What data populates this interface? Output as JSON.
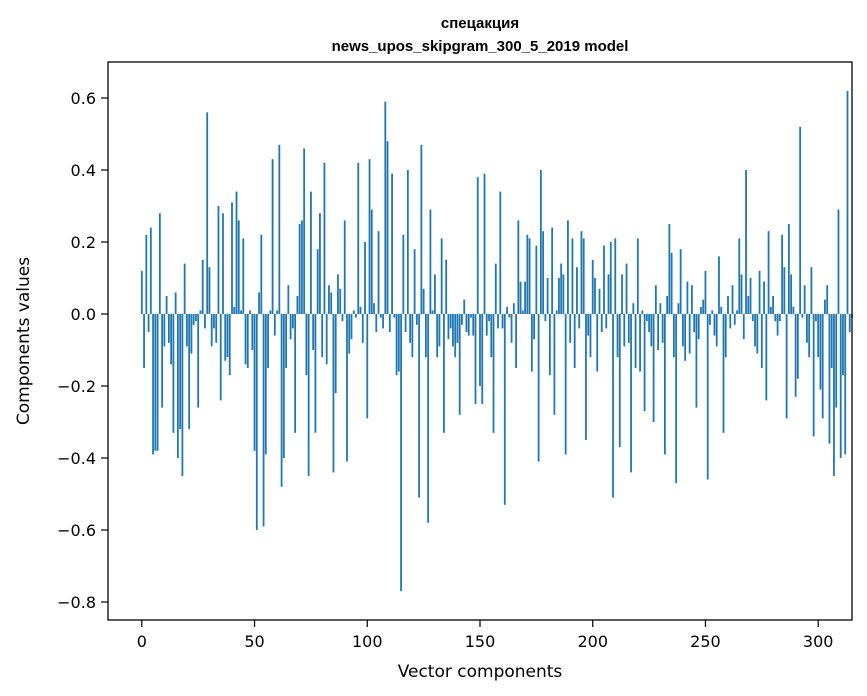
{
  "chart_data": {
    "type": "bar",
    "title": "спецакция",
    "subtitle": "news_upos_skipgram_300_5_2019 model",
    "xlabel": "Vector components",
    "ylabel": "Components values",
    "xlim": [
      -15,
      315
    ],
    "ylim": [
      -0.85,
      0.7
    ],
    "xticks": [
      0,
      50,
      100,
      150,
      200,
      250,
      300
    ],
    "xtick_labels": [
      "0",
      "50",
      "100",
      "150",
      "200",
      "250",
      "300"
    ],
    "yticks": [
      -0.8,
      -0.6,
      -0.4,
      -0.2,
      0.0,
      0.2,
      0.4,
      0.6
    ],
    "ytick_labels": [
      "−0.8",
      "−0.6",
      "−0.4",
      "−0.2",
      "0.0",
      "0.2",
      "0.4",
      "0.6"
    ],
    "bar_color": "#1f77b4",
    "grid": false,
    "values": [
      0.12,
      -0.15,
      0.22,
      -0.05,
      0.24,
      -0.39,
      -0.38,
      -0.38,
      0.28,
      -0.26,
      -0.09,
      0.05,
      -0.08,
      -0.14,
      -0.33,
      0.06,
      -0.4,
      -0.32,
      -0.45,
      0.14,
      -0.09,
      -0.32,
      -0.11,
      -0.03,
      -0.02,
      -0.26,
      0.01,
      0.15,
      -0.04,
      0.56,
      0.13,
      -0.09,
      -0.04,
      -0.08,
      0.3,
      -0.24,
      0.28,
      -0.13,
      -0.12,
      -0.17,
      0.31,
      0.02,
      0.34,
      0.26,
      0.01,
      0.21,
      -0.14,
      -0.15,
      0.01,
      -0.1,
      -0.38,
      -0.6,
      0.06,
      0.22,
      -0.59,
      -0.39,
      -0.15,
      0.01,
      0.43,
      -0.06,
      0.01,
      0.47,
      -0.48,
      -0.4,
      -0.15,
      0.08,
      -0.07,
      -0.04,
      -0.33,
      0.05,
      0.25,
      0.26,
      0.46,
      -0.17,
      -0.45,
      0.34,
      -0.1,
      -0.33,
      0.18,
      0.28,
      -0.12,
      0.42,
      -0.14,
      0.08,
      0.06,
      -0.44,
      -0.22,
      0.11,
      0.07,
      -0.02,
      0.26,
      -0.41,
      -0.11,
      -0.07,
      0.01,
      -0.01,
      0.42,
      0.02,
      -0.08,
      0.2,
      -0.29,
      0.43,
      0.29,
      0.03,
      -0.05,
      0.23,
      -0.01,
      -0.04,
      0.59,
      0.48,
      -0.05,
      0.39,
      -0.01,
      -0.17,
      -0.16,
      -0.77,
      0.22,
      -0.05,
      0.4,
      -0.08,
      -0.12,
      0.18,
      -0.03,
      -0.51,
      0.47,
      0.07,
      -0.12,
      -0.58,
      0.29,
      0.01,
      0.11,
      -0.12,
      -0.09,
      0.21,
      -0.33,
      0.15,
      -0.07,
      -0.04,
      -0.09,
      -0.12,
      -0.08,
      -0.28,
      -0.03,
      0.04,
      -0.05,
      -0.06,
      -0.01,
      -0.06,
      -0.25,
      0.38,
      -0.2,
      -0.25,
      0.39,
      -0.06,
      -0.02,
      -0.12,
      -0.33,
      0.14,
      -0.04,
      0.34,
      -0.04,
      -0.53,
      0.02,
      -0.01,
      -0.08,
      0.03,
      -0.15,
      0.26,
      0.09,
      0.01,
      0.09,
      0.22,
      0.21,
      -0.16,
      -0.07,
      0.19,
      -0.41,
      0.4,
      0.23,
      -0.02,
      0.1,
      -0.17,
      0.24,
      -0.28,
      0.01,
      0.1,
      0.14,
      0.11,
      -0.39,
      0.26,
      -0.08,
      0.21,
      -0.15,
      0.13,
      -0.04,
      0.23,
      0.21,
      -0.35,
      -0.06,
      -0.12,
      0.15,
      0.1,
      -0.16,
      0.07,
      -0.05,
      0.19,
      -0.04,
      0.11,
      0.2,
      -0.51,
      0.21,
      -0.12,
      -0.37,
      0.11,
      -0.09,
      0.14,
      -0.08,
      -0.44,
      0.03,
      -0.15,
      0.21,
      -0.16,
      0.01,
      -0.27,
      -0.02,
      -0.05,
      -0.09,
      -0.3,
      0.08,
      -0.1,
      0.03,
      -0.08,
      -0.39,
      0.05,
      0.25,
      0.17,
      -0.12,
      -0.47,
      0.03,
      0.18,
      -0.09,
      -0.13,
      0.09,
      -0.11,
      0.08,
      -0.05,
      -0.26,
      -0.07,
      0.02,
      0.04,
      0.12,
      -0.46,
      -0.03,
      0.01,
      -0.06,
      -0.09,
      0.16,
      0.02,
      -0.33,
      -0.12,
      0.05,
      -0.04,
      0.08,
      -0.03,
      0.01,
      0.21,
      0.11,
      -0.07,
      0.4,
      0.05,
      0.1,
      -0.02,
      -0.09,
      -0.11,
      0.12,
      -0.15,
      0.09,
      -0.24,
      0.23,
      0.02,
      0.05,
      -0.02,
      -0.06,
      -0.02,
      0.22,
      0.13,
      -0.29,
      0.25,
      0.11,
      0.02,
      -0.23,
      -0.18,
      0.52,
      -0.01,
      0.08,
      -0.08,
      -0.12,
      0.13,
      -0.34,
      -0.02,
      -0.12,
      -0.21,
      -0.29,
      0.04,
      0.08,
      -0.36,
      -0.15,
      -0.45,
      -0.26,
      0.29,
      -0.4,
      -0.17,
      -0.39,
      0.62,
      -0.05,
      -0.01
    ]
  }
}
